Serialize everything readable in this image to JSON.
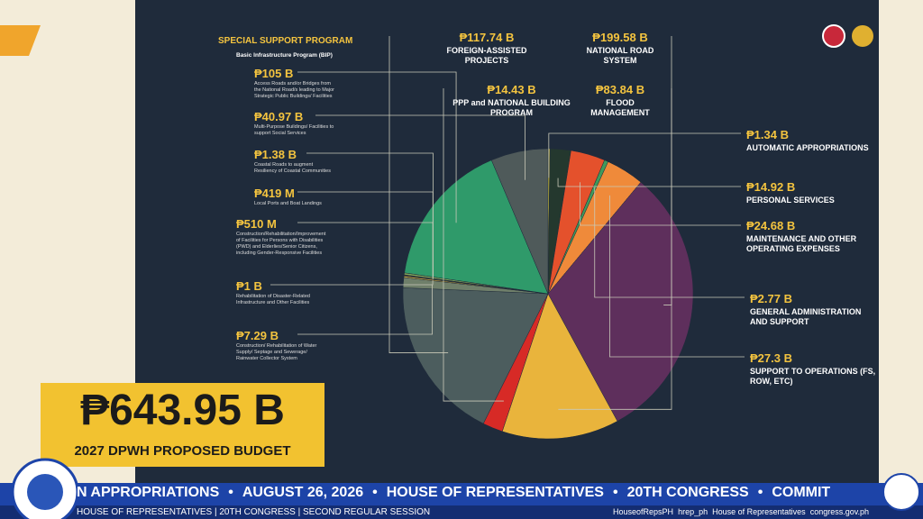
{
  "chart_data": {
    "type": "pie",
    "group_title": "SPECIAL SUPPORT PROGRAM",
    "group_subtitle": "Basic Infrastructure Program (BIP)",
    "categories": [
      "AUTOMATIC APPROPRIATIONS",
      "PERSONAL SERVICES",
      "MAINTENANCE AND OTHER OPERATING EXPENSES",
      "GENERAL ADMINISTRATION AND SUPPORT",
      "SUPPORT TO OPERATIONS (FS, ROW, ETC)",
      "NATIONAL ROAD SYSTEM",
      "FLOOD MANAGEMENT",
      "PPP and NATIONAL BUILDING PROGRAM",
      "FOREIGN-ASSISTED PROJECTS",
      "Construction/ Rehabilitation of Water Supply/ Septage and Sewerage/ Rainwater Collector System",
      "Rehabilitation of Disaster-Related Infrastructure and Other Facilities",
      "Construction/Rehabilitation/Improvement of Facilities for Persons with Disabilities (PWD) and Elderlies/Senior Citizens, including Gender-Responsive Facilities",
      "Local Ports and Boat Landings",
      "Coastal Roads to augment Resiliency of Coastal Communities",
      "Access Roads and/or Bridges from the National Road/s leading to Major Strategic Public Buildings/ Facilities",
      "Multi-Purpose Buildings/ Facilities to support Social Services"
    ],
    "values": [
      1.34,
      14.92,
      24.68,
      2.77,
      27.3,
      199.58,
      83.84,
      14.43,
      117.74,
      7.29,
      1,
      0.51,
      0.419,
      1.38,
      105,
      40.97
    ],
    "value_labels": [
      "₱1.34 B",
      "₱14.92 B",
      "₱24.68 B",
      "₱2.77 B",
      "₱27.3 B",
      "₱199.58 B",
      "₱83.84 B",
      "₱14.43 B",
      "₱117.74 B",
      "₱7.29 B",
      "₱1 B",
      "₱510 M",
      "₱419 M",
      "₱1.38 B",
      "₱105 B",
      "₱40.97 B"
    ],
    "colors": [
      "#d9c63a",
      "#24382e",
      "#e4512c",
      "#3f9a5c",
      "#ef8a3a",
      "#5e2f5c",
      "#e9b43c",
      "#d72a26",
      "#4c5d5e",
      "#6f7f6a",
      "#c9a640",
      "#8a8a3a",
      "#a04a3a",
      "#7fa35a",
      "#2f9a6a",
      "#4f5a5a"
    ]
  },
  "headline": {
    "amount": "₱643.95 B",
    "caption": "2027 DPWH PROPOSED BUDGET"
  },
  "ticker": [
    "N APPROPRIATIONS",
    "AUGUST 26, 2026",
    "HOUSE OF REPRESENTATIVES",
    "20TH CONGRESS",
    "COMMIT"
  ],
  "footer": {
    "left": [
      "HOUSE OF REPRESENTATIVES",
      "20TH CONGRESS",
      "SECOND REGULAR SESSION"
    ],
    "social": [
      "HouseofRepsPH",
      "hrep_ph",
      "House of Representatives",
      "congress.gov.ph"
    ]
  }
}
